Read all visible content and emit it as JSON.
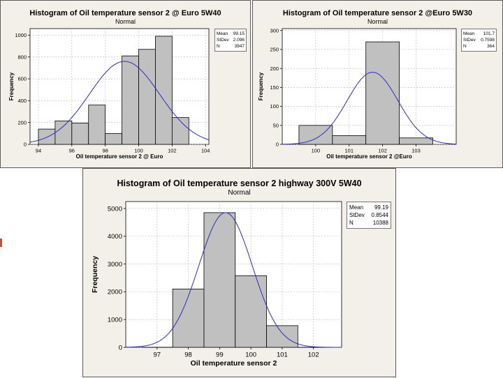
{
  "chart_data": [
    {
      "type": "bar",
      "title": "Histogram of Oil temperature sensor 2 @ Euro 5W40",
      "subtitle": "Normal",
      "xlabel": "Oil temperature sensor 2 @ Euro",
      "ylabel": "Frequency",
      "bins": [
        {
          "start": 94,
          "end": 95,
          "count": 140
        },
        {
          "start": 95,
          "end": 96,
          "count": 215
        },
        {
          "start": 96,
          "end": 97,
          "count": 195
        },
        {
          "start": 97,
          "end": 98,
          "count": 360
        },
        {
          "start": 98,
          "end": 99,
          "count": 100
        },
        {
          "start": 99,
          "end": 100,
          "count": 810
        },
        {
          "start": 100,
          "end": 101,
          "count": 870
        },
        {
          "start": 101,
          "end": 102,
          "count": 990
        },
        {
          "start": 102,
          "end": 103,
          "count": 245
        }
      ],
      "xlim": [
        93.5,
        104.2
      ],
      "ylim": [
        0,
        1060
      ],
      "xticks": [
        94,
        96,
        98,
        100,
        102,
        104
      ],
      "yticks": [
        0,
        200,
        400,
        600,
        800,
        1000
      ],
      "fit": {
        "mean": 99.15,
        "stdev": 2.096,
        "peak": 760
      },
      "stats": [
        {
          "label": "Mean",
          "value": "99.15"
        },
        {
          "label": "StDev",
          "value": "2.096"
        },
        {
          "label": "N",
          "value": "3947"
        }
      ],
      "grid": true,
      "legend": "top-right"
    },
    {
      "type": "bar",
      "title": "Histogram of Oil temperature sensor 2 @Euro 5W30",
      "subtitle": "Normal",
      "xlabel": "Oil temperature sensor 2 @Euro",
      "ylabel": "Frequency",
      "bins": [
        {
          "start": 99.5,
          "end": 100.5,
          "count": 50
        },
        {
          "start": 100.5,
          "end": 101.5,
          "count": 23
        },
        {
          "start": 101.5,
          "end": 102.5,
          "count": 270
        },
        {
          "start": 102.5,
          "end": 103.5,
          "count": 17
        }
      ],
      "xlim": [
        99.0,
        104.2
      ],
      "ylim": [
        0,
        305
      ],
      "xticks": [
        100,
        101,
        102,
        103
      ],
      "yticks": [
        0,
        50,
        100,
        150,
        200,
        250,
        300
      ],
      "fit": {
        "mean": 101.7,
        "stdev": 0.7598,
        "peak": 190
      },
      "stats": [
        {
          "label": "Mean",
          "value": "101.7"
        },
        {
          "label": "StDev",
          "value": "0.7598"
        },
        {
          "label": "N",
          "value": "364"
        }
      ],
      "grid": true,
      "legend": "top-right"
    },
    {
      "type": "bar",
      "title": "Histogram of Oil temperature sensor 2 highway 300V 5W40",
      "subtitle": "Normal",
      "xlabel": "Oil temperature sensor 2",
      "ylabel": "Frequency",
      "bins": [
        {
          "start": 96.5,
          "end": 97.5,
          "count": 0
        },
        {
          "start": 97.5,
          "end": 98.5,
          "count": 2100
        },
        {
          "start": 98.5,
          "end": 99.5,
          "count": 4850
        },
        {
          "start": 99.5,
          "end": 100.5,
          "count": 2580
        },
        {
          "start": 100.5,
          "end": 101.5,
          "count": 780
        },
        {
          "start": 101.5,
          "end": 102.5,
          "count": 0
        }
      ],
      "xlim": [
        96.0,
        102.9
      ],
      "ylim": [
        0,
        5250
      ],
      "xticks": [
        97,
        98,
        99,
        100,
        101,
        102
      ],
      "yticks": [
        0,
        1000,
        2000,
        3000,
        4000,
        5000
      ],
      "fit": {
        "mean": 99.19,
        "stdev": 0.8544,
        "peak": 4850
      },
      "stats": [
        {
          "label": "Mean",
          "value": "99.19"
        },
        {
          "label": "StDev",
          "value": "0.8544"
        },
        {
          "label": "N",
          "value": "10388"
        }
      ],
      "grid": true,
      "legend": "top-right"
    }
  ],
  "colors": {
    "panel_bg": "#f2f0e8",
    "plot_bg": "#ffffff",
    "bar_fill": "#c0c0c0",
    "bar_stroke": "#000000",
    "fit_line": "#2d2dbf",
    "grid": "#b8b8b8"
  }
}
